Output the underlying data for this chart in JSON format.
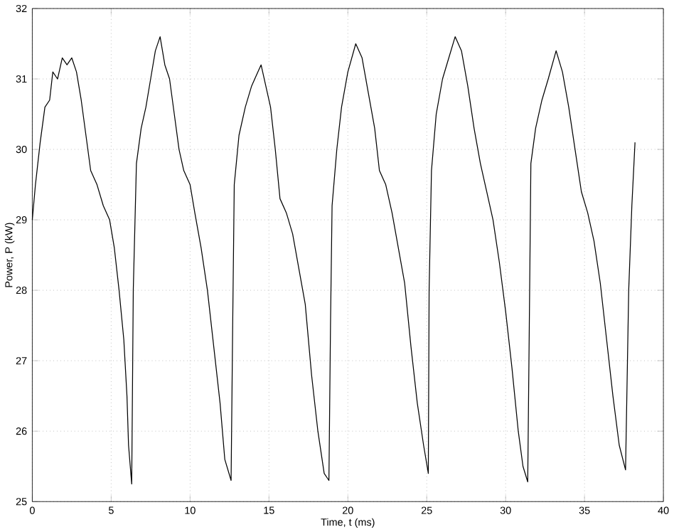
{
  "chart_data": {
    "type": "line",
    "xlabel": "Time, t (ms)",
    "ylabel": "Power, P (kW)",
    "xlim": [
      0,
      40
    ],
    "ylim": [
      25,
      32
    ],
    "xticks": [
      0,
      5,
      10,
      15,
      20,
      25,
      30,
      35,
      40
    ],
    "yticks": [
      25,
      26,
      27,
      28,
      29,
      30,
      31,
      32
    ],
    "grid": true,
    "line_style": "solid",
    "marker": "none",
    "series": [
      {
        "color": "#000000",
        "x": [
          0,
          0.2,
          0.5,
          0.8,
          1.1,
          1.3,
          1.6,
          1.9,
          2.2,
          2.5,
          2.8,
          3.1,
          3.4,
          3.7,
          4.1,
          4.5,
          4.9,
          5.2,
          5.5,
          5.8,
          6.0,
          6.1,
          6.3,
          6.4,
          6.6,
          6.9,
          7.2,
          7.5,
          7.8,
          8.1,
          8.4,
          8.7,
          9.0,
          9.3,
          9.6,
          10.0,
          10.3,
          10.7,
          11.1,
          11.5,
          11.9,
          12.2,
          12.6,
          12.7,
          12.8,
          13.1,
          13.5,
          13.9,
          14.3,
          14.5,
          14.8,
          15.1,
          15.4,
          15.7,
          16.1,
          16.5,
          16.9,
          17.3,
          17.7,
          18.1,
          18.5,
          18.8,
          18.9,
          19.0,
          19.3,
          19.6,
          20.0,
          20.5,
          20.9,
          21.3,
          21.7,
          22.0,
          22.4,
          22.8,
          23.2,
          23.6,
          24.0,
          24.4,
          24.8,
          25.1,
          25.15,
          25.3,
          25.6,
          26.0,
          26.4,
          26.8,
          27.2,
          27.6,
          28.0,
          28.4,
          28.8,
          29.2,
          29.6,
          30.0,
          30.4,
          30.8,
          31.1,
          31.4,
          31.5,
          31.6,
          31.9,
          32.3,
          32.7,
          33.2,
          33.6,
          34.0,
          34.4,
          34.8,
          35.2,
          35.6,
          36.0,
          36.4,
          36.8,
          37.2,
          37.6,
          37.8,
          38.0,
          38.2
        ],
        "values": [
          29.0,
          29.5,
          30.1,
          30.6,
          30.7,
          31.1,
          31.0,
          31.3,
          31.2,
          31.3,
          31.1,
          30.7,
          30.2,
          29.7,
          29.5,
          29.2,
          29.0,
          28.6,
          28.0,
          27.3,
          26.5,
          25.8,
          25.25,
          28.0,
          29.8,
          30.3,
          30.6,
          31.0,
          31.4,
          31.6,
          31.2,
          31.0,
          30.5,
          30.0,
          29.7,
          29.5,
          29.1,
          28.6,
          28.0,
          27.2,
          26.4,
          25.6,
          25.3,
          27.5,
          29.5,
          30.2,
          30.6,
          30.9,
          31.1,
          31.2,
          30.9,
          30.6,
          30.0,
          29.3,
          29.1,
          28.8,
          28.3,
          27.8,
          26.8,
          26.0,
          25.4,
          25.3,
          27.5,
          29.2,
          30.0,
          30.6,
          31.1,
          31.5,
          31.3,
          30.8,
          30.3,
          29.7,
          29.5,
          29.1,
          28.6,
          28.1,
          27.2,
          26.4,
          25.8,
          25.4,
          28.0,
          29.7,
          30.5,
          31.0,
          31.3,
          31.6,
          31.4,
          30.9,
          30.3,
          29.8,
          29.4,
          29.0,
          28.4,
          27.7,
          26.9,
          26.0,
          25.5,
          25.28,
          27.5,
          29.8,
          30.3,
          30.7,
          31.0,
          31.4,
          31.1,
          30.6,
          30.0,
          29.4,
          29.1,
          28.7,
          28.1,
          27.3,
          26.5,
          25.8,
          25.45,
          28.0,
          29.2,
          30.1
        ]
      }
    ]
  }
}
